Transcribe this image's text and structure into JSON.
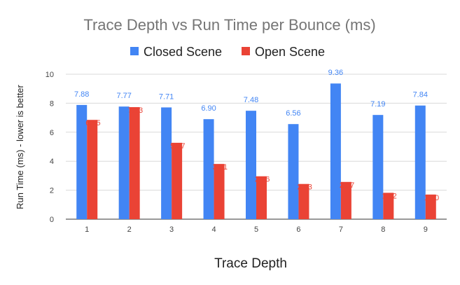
{
  "chart_data": {
    "type": "bar",
    "title": "Trace Depth vs Run Time per Bounce (ms)",
    "xlabel": "Trace Depth",
    "ylabel": "Run Time (ms) - lower is better",
    "categories": [
      "1",
      "2",
      "3",
      "4",
      "5",
      "6",
      "7",
      "8",
      "9"
    ],
    "series": [
      {
        "name": "Closed Scene",
        "color": "#4285f4",
        "values": [
          7.88,
          7.77,
          7.71,
          6.9,
          7.48,
          6.56,
          9.36,
          7.19,
          7.84
        ],
        "labels": [
          "7.88",
          "7.77",
          "7.71",
          "6.90",
          "7.48",
          "6.56",
          "9.36",
          "7.19",
          "7.84"
        ]
      },
      {
        "name": "Open Scene",
        "color": "#ea4335",
        "values": [
          6.85,
          7.73,
          5.27,
          3.81,
          2.96,
          2.43,
          2.57,
          1.82,
          1.7
        ],
        "labels": [
          "6.85",
          "7.73",
          "5.27",
          "3.81",
          "2.96",
          "2.43",
          "2.57",
          "1.82",
          "1.70"
        ]
      }
    ],
    "ylim": [
      0,
      10
    ],
    "yticks": [
      "0",
      "2",
      "4",
      "6",
      "8",
      "10"
    ],
    "grid": true,
    "legend": "top-center"
  }
}
